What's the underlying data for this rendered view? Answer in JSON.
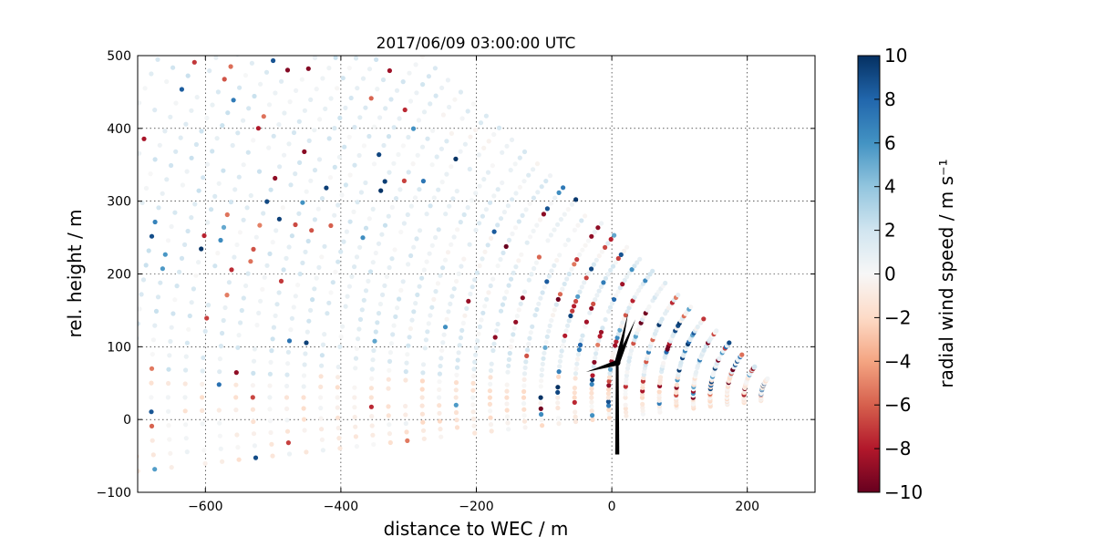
{
  "chart_data": {
    "type": "scatter",
    "title": "2017/06/09 03:00:00 UTC",
    "xlabel": "distance to WEC / m",
    "ylabel": "rel. height / m",
    "xlim": [
      -700,
      300
    ],
    "ylim": [
      -100,
      500
    ],
    "xticks": [
      -600,
      -400,
      -200,
      0,
      200
    ],
    "xtick_labels": [
      "−600",
      "−400",
      "−200",
      "0",
      "200"
    ],
    "yticks": [
      -100,
      0,
      100,
      200,
      300,
      400,
      500
    ],
    "ytick_labels": [
      "−100",
      "0",
      "100",
      "200",
      "300",
      "400",
      "500"
    ],
    "grid": true,
    "colorbar": {
      "label": "radial wind speed / m s⁻¹",
      "range": [
        -10,
        10
      ],
      "ticks": [
        -10,
        -8,
        -6,
        -4,
        -2,
        0,
        2,
        4,
        6,
        8,
        10
      ],
      "tick_labels": [
        "−10",
        "−8",
        "−6",
        "−4",
        "−2",
        "0",
        "2",
        "4",
        "6",
        "8",
        "10"
      ],
      "colormap": "RdBu",
      "colors": [
        "#67001f",
        "#b2182b",
        "#d6604d",
        "#f4a582",
        "#fddbc7",
        "#f7f7f7",
        "#d1e5f0",
        "#92c5de",
        "#4393c3",
        "#2166ac",
        "#053061"
      ]
    },
    "scan": {
      "origin_x": 260,
      "origin_y": 30,
      "beam_count": 40,
      "beam_elevation_deg_min": -6,
      "beam_elevation_deg_max": 41,
      "gate_spacing_m": 25,
      "gate_start_m": 40
    },
    "turbine": {
      "x": 8,
      "hub_height": 78,
      "base_height": -48,
      "icon": "wind-turbine-icon"
    }
  }
}
